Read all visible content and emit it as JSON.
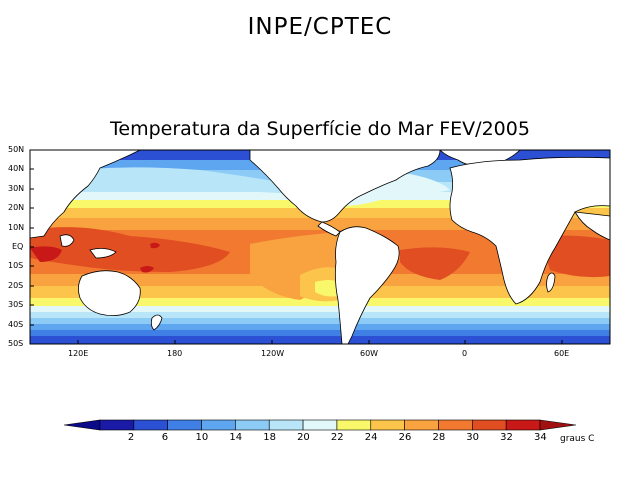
{
  "header": {
    "org": "INPE/CPTEC"
  },
  "map": {
    "title": "Temperatura da Superfície do Mar FEV/2005",
    "lat_labels": [
      "50N",
      "40N",
      "30N",
      "20N",
      "10N",
      "EQ",
      "10S",
      "20S",
      "30S",
      "40S",
      "50S"
    ],
    "lon_labels": [
      "120E",
      "180",
      "120W",
      "60W",
      "0",
      "60E"
    ],
    "colors": {
      "c0": "#1a1aa6",
      "c2": "#2b50d4",
      "c6": "#3f7fe6",
      "c10": "#5ea6f0",
      "c14": "#8ccbf5",
      "c18": "#b8e6f8",
      "c20": "#e2f7fa",
      "c22": "#f8f86a",
      "c24": "#fcc44a",
      "c26": "#f9a340",
      "c28": "#f17a30",
      "c30": "#e04e22",
      "c32": "#c81818",
      "c34": "#a01010",
      "land": "#ffffff"
    }
  },
  "colorbar": {
    "values": [
      "2",
      "6",
      "10",
      "14",
      "18",
      "20",
      "22",
      "24",
      "26",
      "28",
      "30",
      "32",
      "34"
    ],
    "colors": [
      "#0a0a8a",
      "#1a1aa6",
      "#2b50d4",
      "#3f7fe6",
      "#5ea6f0",
      "#8ccbf5",
      "#b8e6f8",
      "#e2f7fa",
      "#f8f86a",
      "#fcc44a",
      "#f9a340",
      "#f17a30",
      "#e04e22",
      "#c81818",
      "#a01010"
    ],
    "units": "graus C"
  }
}
